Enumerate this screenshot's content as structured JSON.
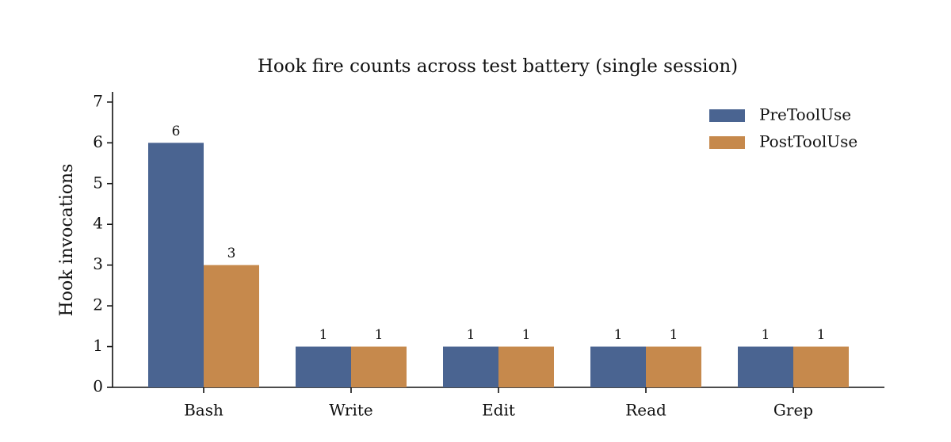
{
  "chart_data": {
    "type": "bar",
    "title": "Hook fire counts across test battery (single session)",
    "y_label": "Hook invocations",
    "categories": [
      "Bash",
      "Write",
      "Edit",
      "Read",
      "Grep"
    ],
    "series": [
      {
        "name": "PreToolUse",
        "color": "#4a6491",
        "values": [
          6,
          1,
          1,
          1,
          1
        ]
      },
      {
        "name": "PostToolUse",
        "color": "#c6894c",
        "values": [
          3,
          1,
          1,
          1,
          1
        ]
      }
    ],
    "ylim": [
      0,
      7.25
    ],
    "yticks": [
      0,
      1,
      2,
      3,
      4,
      5,
      6,
      7
    ],
    "grid": false,
    "legend": "upper right",
    "data_labels": true
  }
}
